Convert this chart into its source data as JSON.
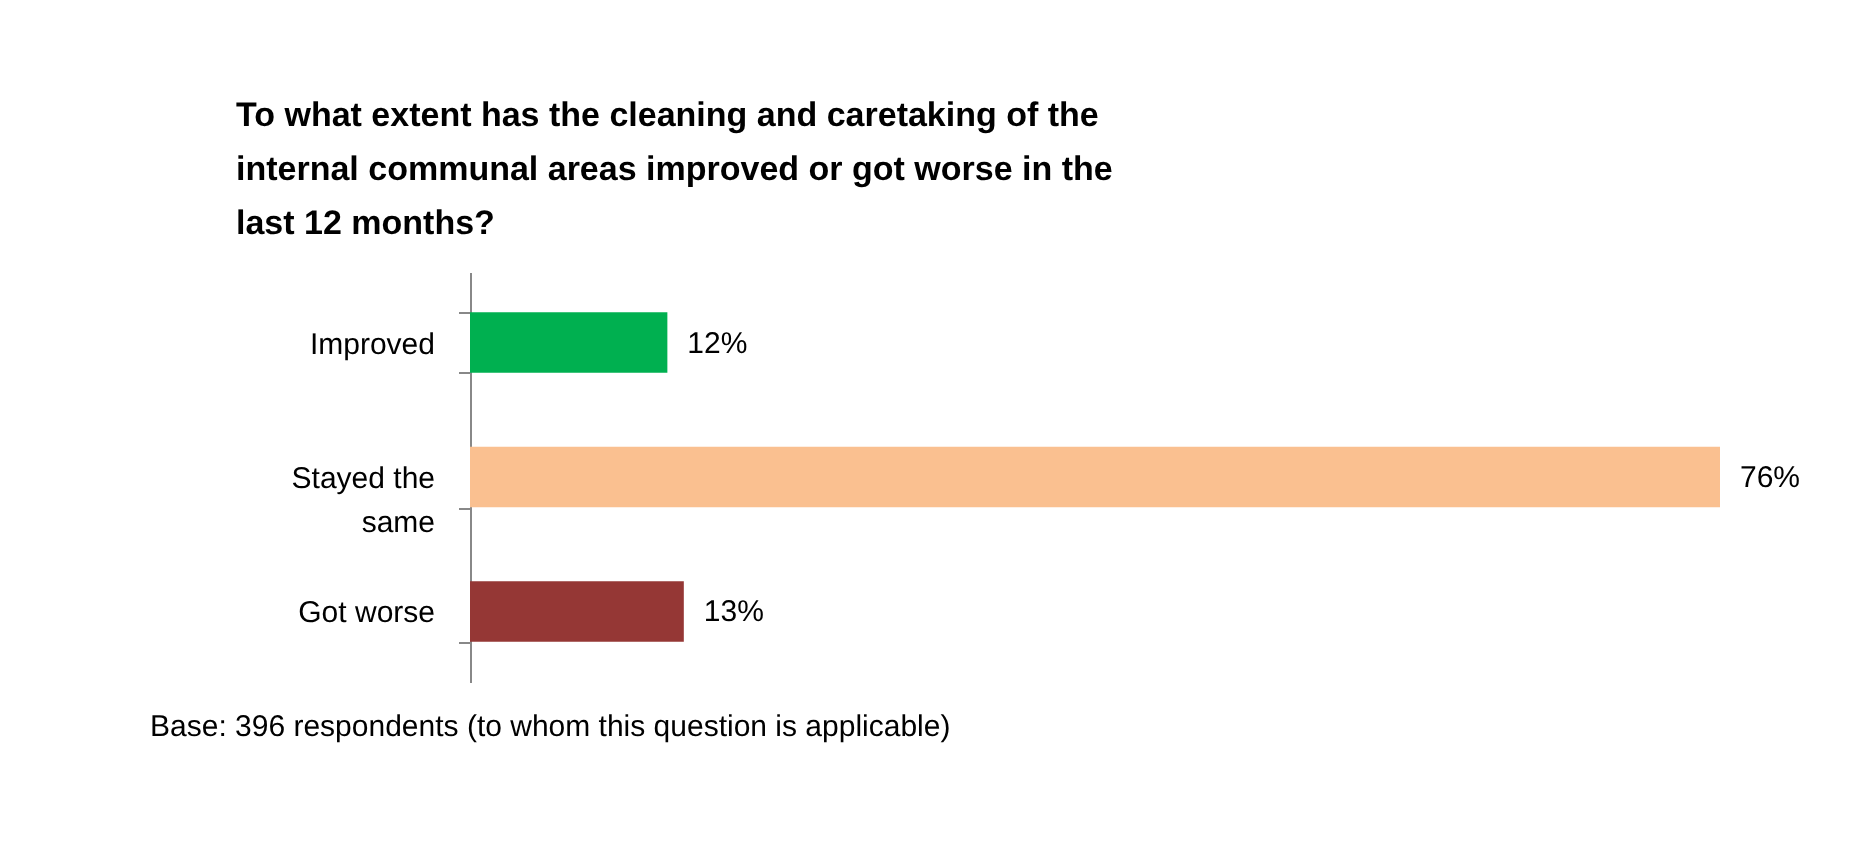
{
  "chart_data": {
    "type": "bar",
    "orientation": "horizontal",
    "title": "To what extent has the cleaning and caretaking of the internal communal areas improved or got worse in the last 12 months?",
    "categories": [
      "Improved",
      "Stayed the same",
      "Got worse"
    ],
    "values": [
      12,
      76,
      13
    ],
    "colors": [
      "#00b050",
      "#fac090",
      "#953735"
    ],
    "value_labels": [
      "12%",
      "76%",
      "13%"
    ],
    "annotations": [
      "Base:  396 respondents (to whom this question is applicable)"
    ],
    "grid": false,
    "legend": false
  }
}
